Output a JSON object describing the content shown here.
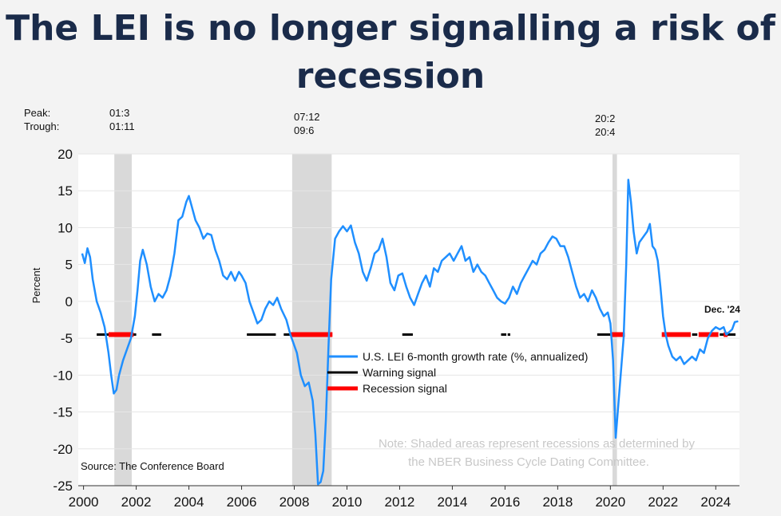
{
  "title": {
    "line1": "The LEI is no longer signalling a risk of",
    "line2": "recession"
  },
  "peak_trough": {
    "peak_label": "Peak:",
    "trough_label": "Trough:",
    "recessions": [
      {
        "peak": "01:3",
        "trough": "01:11"
      },
      {
        "peak": "07:12",
        "trough": "09:6"
      },
      {
        "peak": "20:2",
        "trough": "20:4"
      }
    ]
  },
  "colors": {
    "lei": "#1f8fff",
    "warning": "#000000",
    "recession_signal": "#ff0000",
    "shade": "#d9d9d9",
    "title": "#1a2b4a"
  },
  "chart_data": {
    "type": "line",
    "ylabel": "Percent",
    "ylim": [
      -25,
      20
    ],
    "xlim": [
      1999.8,
      2024.9
    ],
    "yticks": [
      "20",
      "15",
      "10",
      "5",
      "0",
      "-5",
      "-10",
      "-15",
      "-20",
      "-25"
    ],
    "xticks": [
      "2000",
      "2002",
      "2004",
      "2006",
      "2008",
      "2010",
      "2012",
      "2014",
      "2016",
      "2018",
      "2020",
      "2022",
      "2024"
    ],
    "grid": true,
    "recessions": [
      [
        2001.17,
        2001.83
      ],
      [
        2007.92,
        2009.42
      ],
      [
        2020.08,
        2020.25
      ]
    ],
    "series": [
      {
        "name": "U.S. LEI 6-month growth rate (%, annualized)",
        "points": [
          [
            1999.95,
            6.5
          ],
          [
            2000.05,
            5.2
          ],
          [
            2000.15,
            7.2
          ],
          [
            2000.25,
            6.0
          ],
          [
            2000.35,
            3.0
          ],
          [
            2000.5,
            0.0
          ],
          [
            2000.65,
            -1.5
          ],
          [
            2000.8,
            -3.5
          ],
          [
            2000.95,
            -7.0
          ],
          [
            2001.05,
            -10.0
          ],
          [
            2001.15,
            -12.5
          ],
          [
            2001.25,
            -12.0
          ],
          [
            2001.35,
            -10.0
          ],
          [
            2001.5,
            -8.0
          ],
          [
            2001.65,
            -6.5
          ],
          [
            2001.8,
            -5.0
          ],
          [
            2001.95,
            -2.0
          ],
          [
            2002.05,
            1.5
          ],
          [
            2002.15,
            5.5
          ],
          [
            2002.25,
            7.0
          ],
          [
            2002.4,
            5.0
          ],
          [
            2002.55,
            2.0
          ],
          [
            2002.7,
            0.0
          ],
          [
            2002.85,
            1.0
          ],
          [
            2003.0,
            0.5
          ],
          [
            2003.15,
            1.5
          ],
          [
            2003.3,
            3.5
          ],
          [
            2003.45,
            6.5
          ],
          [
            2003.6,
            11.0
          ],
          [
            2003.75,
            11.5
          ],
          [
            2003.9,
            13.5
          ],
          [
            2004.0,
            14.3
          ],
          [
            2004.1,
            13.0
          ],
          [
            2004.25,
            11.0
          ],
          [
            2004.4,
            10.0
          ],
          [
            2004.55,
            8.5
          ],
          [
            2004.7,
            9.2
          ],
          [
            2004.85,
            9.0
          ],
          [
            2005.0,
            7.0
          ],
          [
            2005.15,
            5.5
          ],
          [
            2005.3,
            3.5
          ],
          [
            2005.45,
            3.0
          ],
          [
            2005.6,
            4.0
          ],
          [
            2005.75,
            2.8
          ],
          [
            2005.9,
            4.0
          ],
          [
            2006.0,
            3.5
          ],
          [
            2006.15,
            2.5
          ],
          [
            2006.3,
            0.0
          ],
          [
            2006.45,
            -1.5
          ],
          [
            2006.6,
            -3.0
          ],
          [
            2006.75,
            -2.5
          ],
          [
            2006.9,
            -1.0
          ],
          [
            2007.05,
            0.0
          ],
          [
            2007.2,
            -0.5
          ],
          [
            2007.35,
            0.5
          ],
          [
            2007.5,
            -1.0
          ],
          [
            2007.7,
            -2.5
          ],
          [
            2007.85,
            -4.5
          ],
          [
            2007.95,
            -5.5
          ],
          [
            2008.1,
            -7.0
          ],
          [
            2008.25,
            -10.0
          ],
          [
            2008.4,
            -11.5
          ],
          [
            2008.55,
            -11.0
          ],
          [
            2008.7,
            -13.5
          ],
          [
            2008.8,
            -18.0
          ],
          [
            2008.9,
            -24.8
          ],
          [
            2009.0,
            -24.5
          ],
          [
            2009.1,
            -23.0
          ],
          [
            2009.2,
            -16.0
          ],
          [
            2009.3,
            -6.0
          ],
          [
            2009.4,
            3.0
          ],
          [
            2009.55,
            8.5
          ],
          [
            2009.7,
            9.5
          ],
          [
            2009.85,
            10.2
          ],
          [
            2010.0,
            9.5
          ],
          [
            2010.15,
            10.3
          ],
          [
            2010.3,
            8.0
          ],
          [
            2010.45,
            6.5
          ],
          [
            2010.6,
            4.0
          ],
          [
            2010.75,
            2.8
          ],
          [
            2010.9,
            4.5
          ],
          [
            2011.05,
            6.5
          ],
          [
            2011.2,
            7.0
          ],
          [
            2011.35,
            8.5
          ],
          [
            2011.5,
            6.0
          ],
          [
            2011.65,
            2.5
          ],
          [
            2011.8,
            1.5
          ],
          [
            2011.95,
            3.5
          ],
          [
            2012.1,
            3.8
          ],
          [
            2012.25,
            2.0
          ],
          [
            2012.4,
            0.5
          ],
          [
            2012.55,
            -0.5
          ],
          [
            2012.7,
            1.0
          ],
          [
            2012.85,
            2.5
          ],
          [
            2013.0,
            3.5
          ],
          [
            2013.15,
            2.0
          ],
          [
            2013.3,
            4.5
          ],
          [
            2013.45,
            4.0
          ],
          [
            2013.6,
            5.5
          ],
          [
            2013.75,
            6.0
          ],
          [
            2013.9,
            6.5
          ],
          [
            2014.05,
            5.5
          ],
          [
            2014.2,
            6.5
          ],
          [
            2014.35,
            7.5
          ],
          [
            2014.5,
            5.5
          ],
          [
            2014.65,
            6.0
          ],
          [
            2014.8,
            4.0
          ],
          [
            2014.95,
            5.0
          ],
          [
            2015.1,
            4.0
          ],
          [
            2015.25,
            3.5
          ],
          [
            2015.4,
            2.5
          ],
          [
            2015.55,
            1.5
          ],
          [
            2015.7,
            0.5
          ],
          [
            2015.85,
            0.0
          ],
          [
            2016.0,
            -0.3
          ],
          [
            2016.15,
            0.5
          ],
          [
            2016.3,
            2.0
          ],
          [
            2016.45,
            1.0
          ],
          [
            2016.6,
            2.5
          ],
          [
            2016.75,
            3.5
          ],
          [
            2016.9,
            4.5
          ],
          [
            2017.05,
            5.5
          ],
          [
            2017.2,
            5.0
          ],
          [
            2017.35,
            6.5
          ],
          [
            2017.5,
            7.0
          ],
          [
            2017.65,
            8.0
          ],
          [
            2017.8,
            8.8
          ],
          [
            2017.95,
            8.5
          ],
          [
            2018.1,
            7.5
          ],
          [
            2018.25,
            7.5
          ],
          [
            2018.4,
            6.0
          ],
          [
            2018.55,
            4.0
          ],
          [
            2018.7,
            2.0
          ],
          [
            2018.85,
            0.5
          ],
          [
            2019.0,
            1.0
          ],
          [
            2019.15,
            0.0
          ],
          [
            2019.3,
            1.5
          ],
          [
            2019.45,
            0.5
          ],
          [
            2019.6,
            -1.0
          ],
          [
            2019.75,
            -2.0
          ],
          [
            2019.9,
            -1.5
          ],
          [
            2020.0,
            -3.0
          ],
          [
            2020.1,
            -8.0
          ],
          [
            2020.2,
            -18.5
          ],
          [
            2020.3,
            -14.0
          ],
          [
            2020.4,
            -9.5
          ],
          [
            2020.5,
            -5.0
          ],
          [
            2020.6,
            5.0
          ],
          [
            2020.68,
            16.5
          ],
          [
            2020.78,
            13.5
          ],
          [
            2020.88,
            9.5
          ],
          [
            2021.0,
            6.5
          ],
          [
            2021.1,
            8.0
          ],
          [
            2021.2,
            8.5
          ],
          [
            2021.3,
            9.0
          ],
          [
            2021.4,
            9.5
          ],
          [
            2021.5,
            10.5
          ],
          [
            2021.6,
            7.5
          ],
          [
            2021.7,
            7.0
          ],
          [
            2021.8,
            5.5
          ],
          [
            2021.9,
            2.0
          ],
          [
            2022.0,
            -2.0
          ],
          [
            2022.1,
            -4.5
          ],
          [
            2022.2,
            -6.0
          ],
          [
            2022.35,
            -7.5
          ],
          [
            2022.5,
            -8.0
          ],
          [
            2022.65,
            -7.5
          ],
          [
            2022.8,
            -8.5
          ],
          [
            2022.95,
            -8.0
          ],
          [
            2023.1,
            -7.5
          ],
          [
            2023.25,
            -8.0
          ],
          [
            2023.4,
            -6.5
          ],
          [
            2023.55,
            -7.0
          ],
          [
            2023.7,
            -5.0
          ],
          [
            2023.85,
            -4.0
          ],
          [
            2024.0,
            -3.5
          ],
          [
            2024.15,
            -3.8
          ],
          [
            2024.3,
            -3.5
          ],
          [
            2024.4,
            -4.5
          ],
          [
            2024.5,
            -4.2
          ],
          [
            2024.62,
            -3.8
          ],
          [
            2024.72,
            -2.8
          ],
          [
            2024.85,
            -2.7
          ]
        ]
      },
      {
        "name": "Warning signal",
        "segments": [
          [
            2000.5,
            2001.1
          ],
          [
            2001.8,
            2002.0
          ],
          [
            2002.6,
            2002.95
          ],
          [
            2006.2,
            2007.3
          ],
          [
            2007.6,
            2007.85
          ],
          [
            2012.1,
            2012.5
          ],
          [
            2015.85,
            2016.05
          ],
          [
            2016.1,
            2016.2
          ],
          [
            2019.5,
            2020.0
          ],
          [
            2023.1,
            2023.3
          ],
          [
            2024.15,
            2024.75
          ]
        ]
      },
      {
        "name": "Recession signal",
        "segments": [
          [
            2000.95,
            2001.9
          ],
          [
            2007.85,
            2009.45
          ],
          [
            2020.0,
            2020.55
          ],
          [
            2021.95,
            2023.05
          ],
          [
            2023.35,
            2024.1
          ],
          [
            2024.3,
            2024.45
          ]
        ]
      }
    ],
    "annotations": {
      "last_point": "Dec. '24",
      "source": "Source: The Conference Board",
      "note_line1": "Note: Shaded areas represent recessions as determined by",
      "note_line2": "the NBER Business Cycle Dating Committee."
    }
  }
}
